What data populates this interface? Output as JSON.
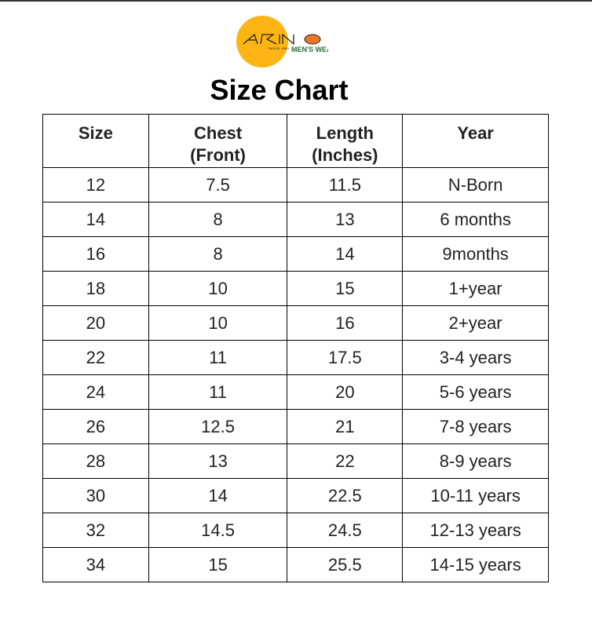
{
  "logo": {
    "brand": "ARINO",
    "tm": "T.M.R NO. 12591",
    "tagline": "MEN'S WEAR",
    "colors": {
      "circle": "#FDB515",
      "oval": "#E8762C",
      "tagline": "#2E6B3A"
    }
  },
  "title": "Size Chart",
  "table": {
    "headers": [
      [
        "Size"
      ],
      [
        "Chest",
        "(Front)"
      ],
      [
        "Length",
        "(Inches)"
      ],
      [
        "Year"
      ]
    ],
    "rows": [
      [
        "12",
        "7.5",
        "11.5",
        "N-Born"
      ],
      [
        "14",
        "8",
        "13",
        "6 months"
      ],
      [
        "16",
        "8",
        "14",
        "9months"
      ],
      [
        "18",
        "10",
        "15",
        "1+year"
      ],
      [
        "20",
        "10",
        "16",
        "2+year"
      ],
      [
        "22",
        "11",
        "17.5",
        "3-4 years"
      ],
      [
        "24",
        "11",
        "20",
        "5-6 years"
      ],
      [
        "26",
        "12.5",
        "21",
        "7-8 years"
      ],
      [
        "28",
        "13",
        "22",
        "8-9 years"
      ],
      [
        "30",
        "14",
        "22.5",
        "10-11 years"
      ],
      [
        "32",
        "14.5",
        "24.5",
        "12-13 years"
      ],
      [
        "34",
        "15",
        "25.5",
        "14-15 years"
      ]
    ]
  }
}
